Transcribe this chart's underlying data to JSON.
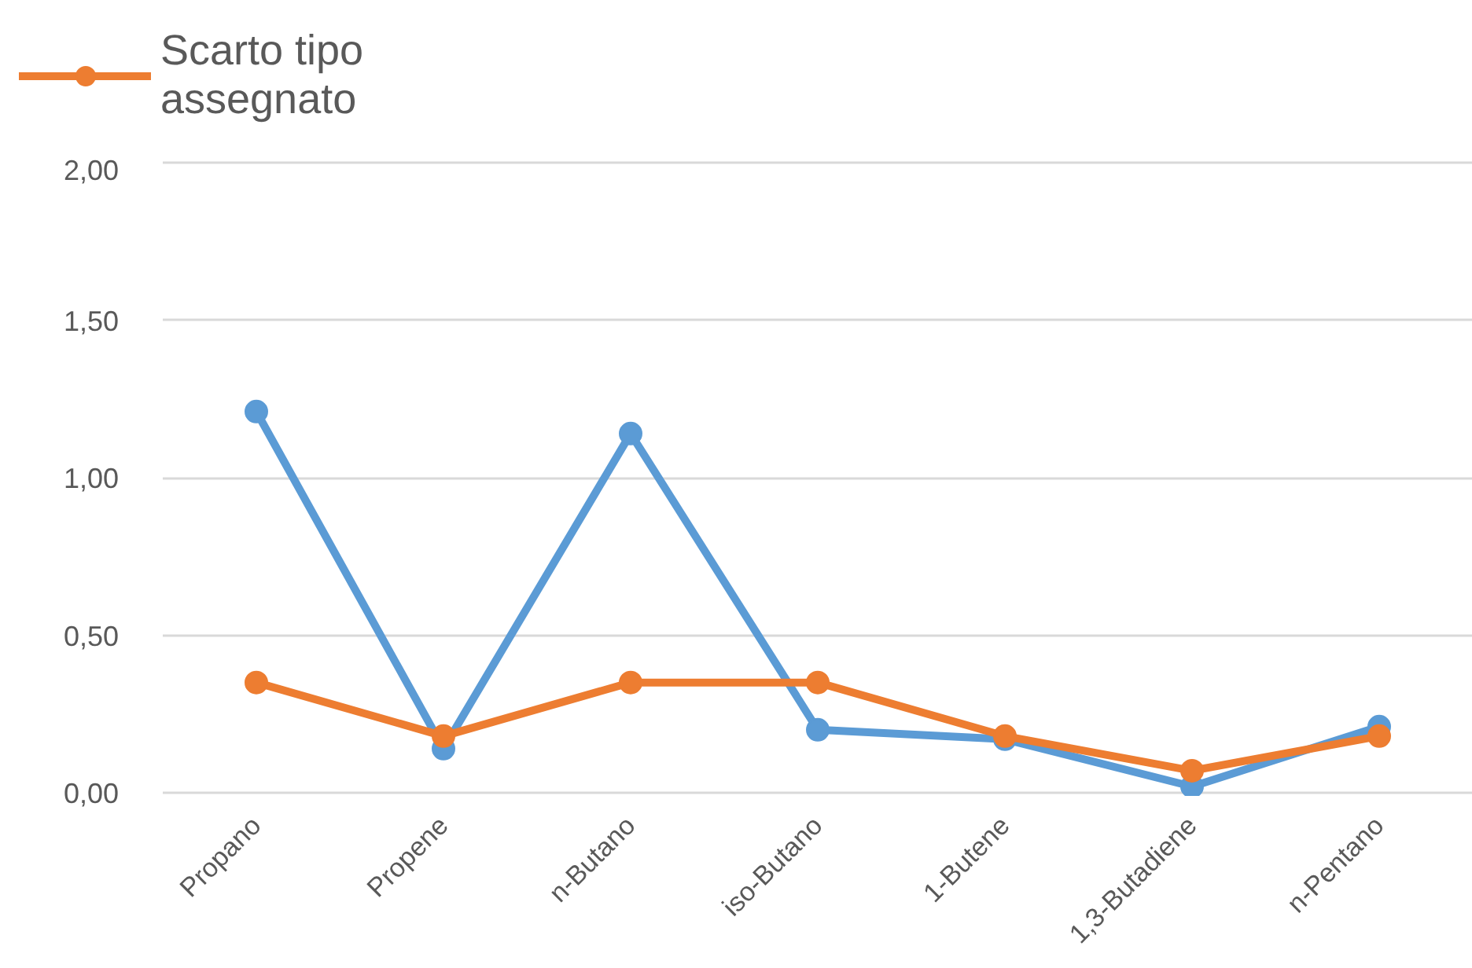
{
  "chart_data": {
    "type": "line",
    "categories": [
      "Propano",
      "Propene",
      "n-Butano",
      "iso-Butano",
      "1-Butene",
      "1,3-Butadiene",
      "n-Pentano"
    ],
    "series": [
      {
        "color": "#5b9bd5",
        "values": [
          1.21,
          0.14,
          1.14,
          0.2,
          0.17,
          0.02,
          0.21
        ]
      },
      {
        "name": "Scarto tipo assegnato",
        "color": "#ed7d31",
        "values": [
          0.35,
          0.18,
          0.35,
          0.35,
          0.18,
          0.07,
          0.18
        ]
      }
    ],
    "ylim": [
      0,
      2
    ],
    "yticks": [
      {
        "value": 0,
        "label": "0,00"
      },
      {
        "value": 0.5,
        "label": "0,50"
      },
      {
        "value": 1,
        "label": "1,00"
      },
      {
        "value": 1.5,
        "label": "1,50"
      },
      {
        "value": 2,
        "label": "2,00"
      }
    ],
    "grid": "y",
    "legend": "top left",
    "marker": "circle",
    "line_style": "solid"
  }
}
